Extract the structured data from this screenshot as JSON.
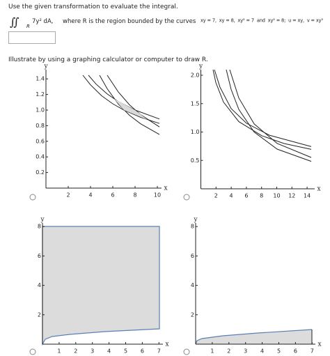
{
  "prompt": "Use the given transformation to evaluate the integral.",
  "integral": {
    "symbol": "∬",
    "sub": "R",
    "body": "7y² dA,",
    "description": "where R is the region bounded by the curves",
    "condition": "xy = 7,  xy = 8,  xy² = 7  and  xy² = 8;  u = xy,  v = xy²"
  },
  "instruction": "Illustrate by using a graphing calculator or computer to draw R.",
  "options": [
    {
      "xlabel": "x",
      "ylabel": "y",
      "xticks": [
        2,
        4,
        6,
        8,
        10
      ],
      "yticks": [
        1.4,
        1.2,
        {
          "value": 1,
          "label": "1.0"
        },
        0.8,
        0.6,
        0.4,
        0.2
      ]
    },
    {
      "xlabel": "x",
      "ylabel": "y",
      "xticks": [
        2,
        4,
        6,
        8,
        10,
        12,
        14
      ],
      "yticks": [
        {
          "value": 2,
          "label": "2.0"
        },
        1.5,
        {
          "value": 1,
          "label": "1.0"
        },
        0.5
      ]
    },
    {
      "xlabel": "x",
      "ylabel": "y",
      "xticks": [
        1,
        2,
        3,
        4,
        5,
        6,
        7
      ],
      "yticks": [
        8,
        6,
        4,
        2
      ]
    },
    {
      "xlabel": "x",
      "ylabel": "y",
      "xticks": [
        1,
        2,
        3,
        4,
        5,
        6,
        7
      ],
      "yticks": [
        8,
        6,
        4,
        2
      ]
    }
  ]
}
